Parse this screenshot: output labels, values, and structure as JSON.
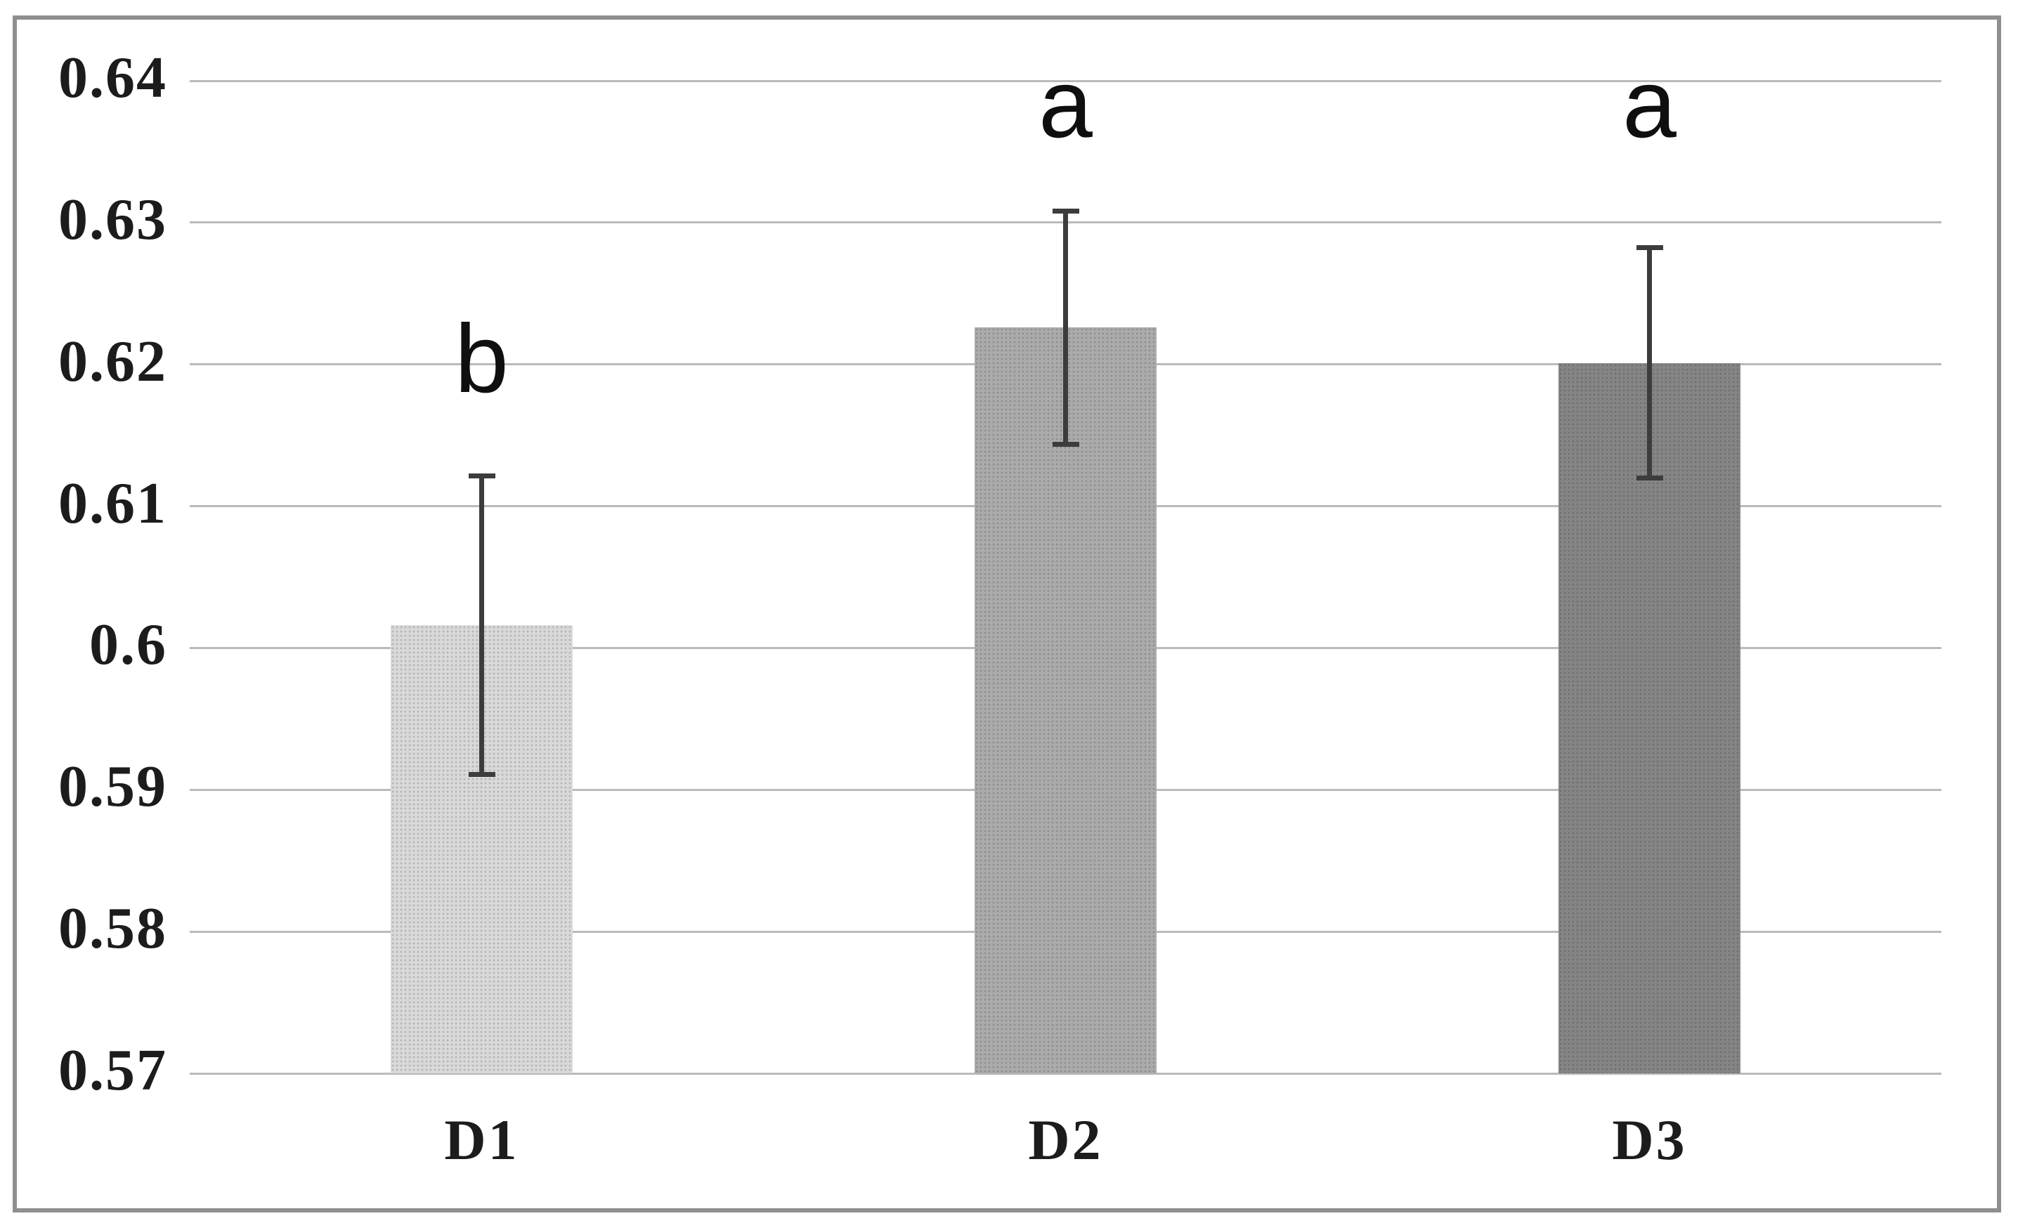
{
  "figure": {
    "background": "#ffffff",
    "frame_color": "#8f8f8f",
    "text_color": "#1c1c1c"
  },
  "chart_data": {
    "type": "bar",
    "title": "",
    "xlabel": "",
    "ylabel": "",
    "categories": [
      "D1",
      "D2",
      "D3"
    ],
    "values": [
      0.6016,
      0.6226,
      0.6201
    ],
    "error_low": [
      0.5909,
      0.6142,
      0.6118
    ],
    "error_high": [
      0.6123,
      0.631,
      0.6284
    ],
    "sig_letters": [
      "b",
      "a",
      "a"
    ],
    "sig_letter_y": [
      0.618,
      0.636,
      0.636
    ],
    "ylim": [
      0.57,
      0.64
    ],
    "yticks": [
      0.64,
      0.63,
      0.62,
      0.61,
      0.6,
      0.59,
      0.58,
      0.57
    ],
    "ytick_labels": [
      "0.64",
      "0.63",
      "0.62",
      "0.61",
      "0.6",
      "0.59",
      "0.58",
      "0.57"
    ],
    "grid": "horizontal",
    "legend": "none",
    "bar_colors": [
      "#d9d9d9",
      "#ababab",
      "#858585"
    ],
    "error_color": "#3c3c3c",
    "gridline_color": "#bababa"
  }
}
